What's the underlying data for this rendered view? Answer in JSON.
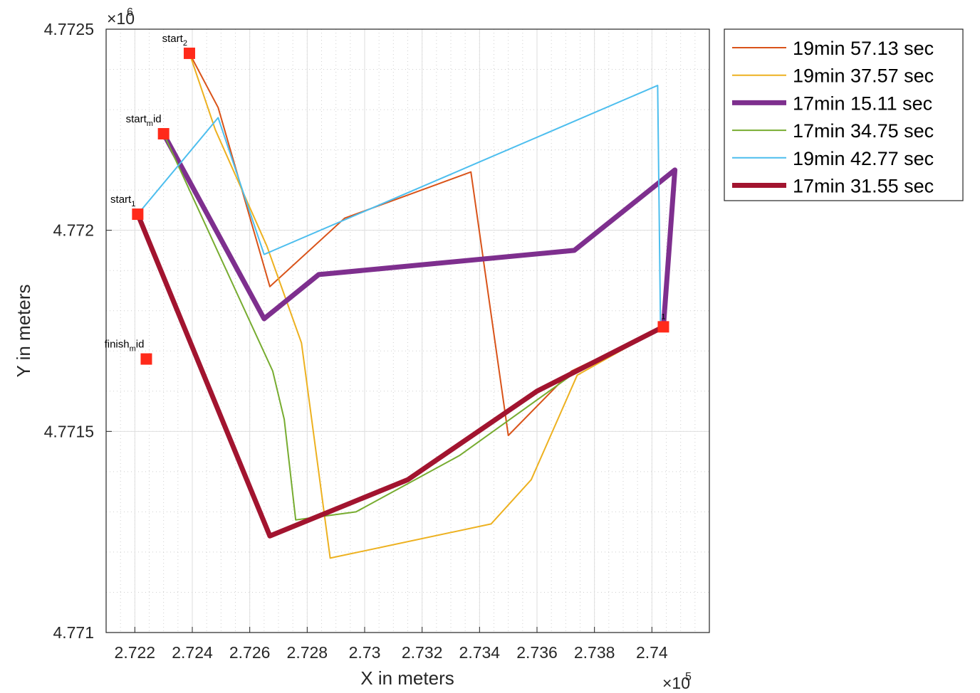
{
  "chart_data": {
    "type": "line",
    "xlabel": "X in meters",
    "ylabel": "Y in meters",
    "xlim": [
      272100,
      274200
    ],
    "ylim": [
      4771000,
      4772500
    ],
    "x_ticks": [
      272200,
      272400,
      272600,
      272800,
      273000,
      273200,
      273400,
      273600,
      273800,
      274000
    ],
    "x_tick_labels": [
      "2.722",
      "2.724",
      "2.726",
      "2.728",
      "2.73",
      "2.732",
      "2.734",
      "2.736",
      "2.738",
      "2.74"
    ],
    "y_ticks": [
      4771000,
      4771500,
      4772000,
      4772500
    ],
    "y_tick_labels": [
      "4.771",
      "4.7715",
      "4.772",
      "4.7725"
    ],
    "x_exponent": {
      "base": "×10",
      "power": "5"
    },
    "y_exponent": {
      "base": "×10",
      "power": "6"
    },
    "grid": true,
    "minor_grid": true,
    "legend_position": "outside-top-right",
    "series": [
      {
        "name": "19min 57.13 sec",
        "color": "#D95319",
        "width": 2,
        "points": [
          [
            272390,
            4772440
          ],
          [
            272490,
            4772305
          ],
          [
            272670,
            4771860
          ],
          [
            272930,
            4772030
          ],
          [
            273370,
            4772145
          ],
          [
            273500,
            4771490
          ],
          [
            273720,
            4771650
          ],
          [
            274040,
            4771760
          ]
        ]
      },
      {
        "name": "19min 37.57 sec",
        "color": "#EDB120",
        "width": 2,
        "points": [
          [
            272390,
            4772440
          ],
          [
            272480,
            4772250
          ],
          [
            272660,
            4771960
          ],
          [
            272780,
            4771720
          ],
          [
            272880,
            4771185
          ],
          [
            273440,
            4771270
          ],
          [
            273580,
            4771380
          ],
          [
            273740,
            4771640
          ],
          [
            274040,
            4771760
          ]
        ]
      },
      {
        "name": "17min 15.11 sec",
        "color": "#7E2F8E",
        "width": 7,
        "points": [
          [
            272300,
            4772240
          ],
          [
            272650,
            4771780
          ],
          [
            272840,
            4771890
          ],
          [
            273730,
            4771950
          ],
          [
            274080,
            4772150
          ],
          [
            274040,
            4771760
          ]
        ]
      },
      {
        "name": "17min 34.75 sec",
        "color": "#77AC30",
        "width": 2,
        "points": [
          [
            272300,
            4772240
          ],
          [
            272680,
            4771650
          ],
          [
            272720,
            4771530
          ],
          [
            272760,
            4771280
          ],
          [
            272970,
            4771300
          ],
          [
            273330,
            4771440
          ],
          [
            273740,
            4771650
          ],
          [
            274040,
            4771760
          ]
        ]
      },
      {
        "name": "19min 42.77 sec",
        "color": "#4DBEEE",
        "width": 2,
        "points": [
          [
            272210,
            4772040
          ],
          [
            272490,
            4772280
          ],
          [
            272650,
            4771940
          ],
          [
            273400,
            4772170
          ],
          [
            274020,
            4772360
          ],
          [
            274030,
            4771760
          ]
        ]
      },
      {
        "name": "17min 31.55 sec",
        "color": "#A2142F",
        "width": 7,
        "points": [
          [
            272210,
            4772040
          ],
          [
            272670,
            4771240
          ],
          [
            273150,
            4771380
          ],
          [
            273600,
            4771600
          ],
          [
            274040,
            4771760
          ]
        ]
      }
    ],
    "markers": [
      {
        "x": 272390,
        "y": 4772440,
        "label": "start",
        "sub": "2"
      },
      {
        "x": 272300,
        "y": 4772240,
        "label": "start",
        "sub": "m",
        "suffix": "id"
      },
      {
        "x": 272210,
        "y": 4772040,
        "label": "start",
        "sub": "1"
      },
      {
        "x": 272240,
        "y": 4771680,
        "label": "finish",
        "sub": "m",
        "suffix": "id"
      },
      {
        "x": 274040,
        "y": 4771760,
        "label": "",
        "sub": "1"
      }
    ],
    "marker_color": "#FF2A1A"
  }
}
